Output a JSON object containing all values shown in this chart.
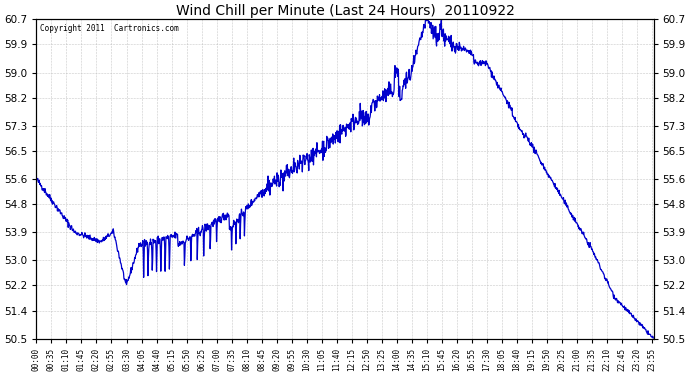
{
  "title": "Wind Chill per Minute (Last 24 Hours)  20110922",
  "copyright": "Copyright 2011  Cartronics.com",
  "line_color": "#0000cc",
  "background_color": "#ffffff",
  "grid_color": "#bbbbbb",
  "ylim": [
    50.5,
    60.7
  ],
  "yticks": [
    50.5,
    51.4,
    52.2,
    53.0,
    53.9,
    54.8,
    55.6,
    56.5,
    57.3,
    58.2,
    59.0,
    59.9,
    60.7
  ],
  "xlabel_fontsize": 5.5,
  "ylabel_fontsize": 7.5,
  "title_fontsize": 10,
  "tick_interval_minutes": 35
}
